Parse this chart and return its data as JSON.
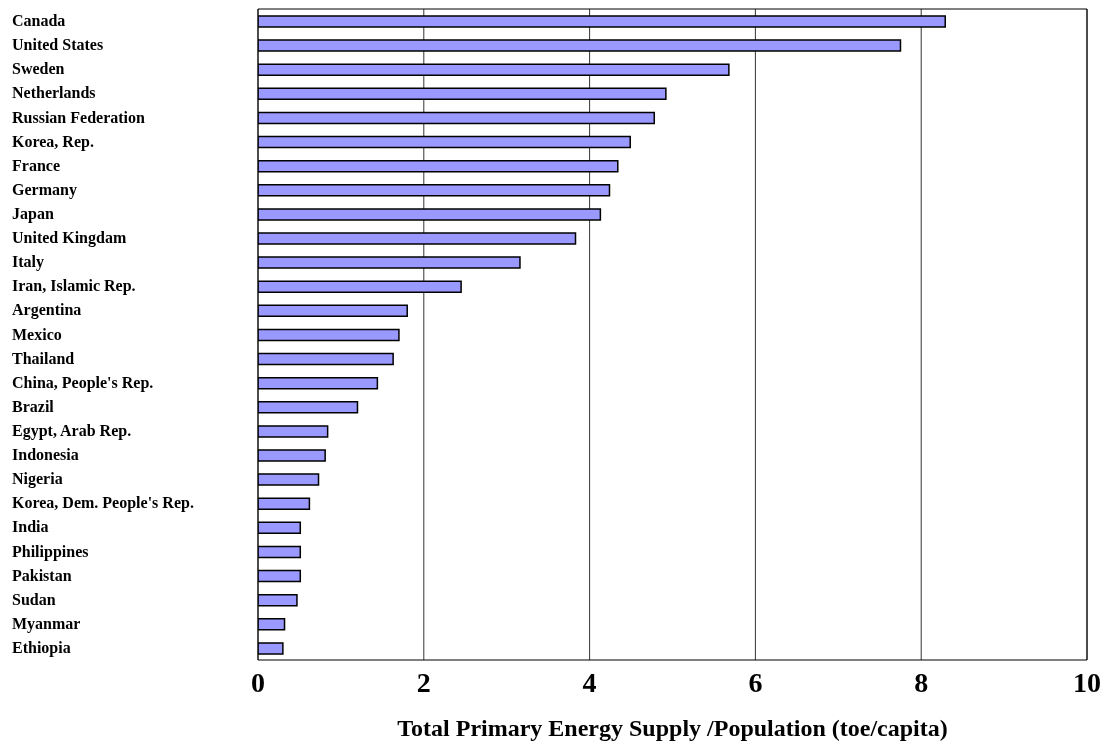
{
  "chart_data": {
    "type": "bar",
    "orientation": "horizontal",
    "xlabel": "Total Primary Energy Supply /Population (toe/capita)",
    "categories": [
      "Canada",
      "United States",
      "Sweden",
      "Netherlands",
      "Russian Federation",
      "Korea, Rep.",
      "France",
      "Germany",
      "Japan",
      "United Kingdam",
      "Italy",
      "Iran, Islamic Rep.",
      "Argentina",
      "Mexico",
      "Thailand",
      "China, People's Rep.",
      "Brazil",
      "Egypt, Arab Rep.",
      "Indonesia",
      "Nigeria",
      "Korea, Dem. People's Rep.",
      "India",
      "Philippines",
      "Pakistan",
      "Sudan",
      "Myanmar",
      "Ethiopia"
    ],
    "values": [
      8.29,
      7.75,
      5.68,
      4.92,
      4.78,
      4.49,
      4.34,
      4.24,
      4.13,
      3.83,
      3.16,
      2.45,
      1.8,
      1.7,
      1.63,
      1.44,
      1.2,
      0.84,
      0.81,
      0.73,
      0.62,
      0.51,
      0.51,
      0.51,
      0.47,
      0.32,
      0.3
    ],
    "color": "#9999ff",
    "xlim": [
      0,
      10
    ],
    "xticks": [
      0,
      2,
      4,
      6,
      8,
      10
    ],
    "grid": "x",
    "legend": false
  }
}
